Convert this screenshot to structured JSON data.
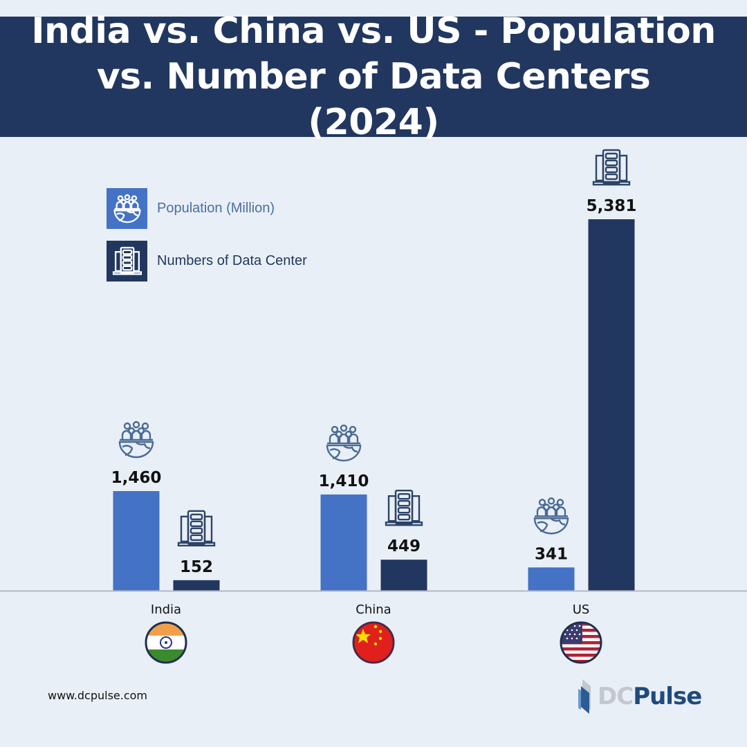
{
  "header": {
    "title": "India vs. China vs. US - Population vs. Number of Data Centers (2024)"
  },
  "legend": [
    {
      "label": "Population (Million)",
      "icon": "population-globe-icon",
      "color": "#4472c4",
      "text_color": "#4a6fa5"
    },
    {
      "label": "Numbers of Data Center",
      "icon": "server-rack-icon",
      "color": "#21375f",
      "text_color": "#21375f"
    }
  ],
  "chart_data": {
    "type": "bar",
    "title": "India vs. China vs. US - Population vs. Number of Data Centers (2024)",
    "categories": [
      "India",
      "China",
      "US"
    ],
    "series": [
      {
        "name": "Population (Million)",
        "values": [
          1460,
          1410,
          341
        ],
        "labels": [
          "1,460",
          "1,410",
          "341"
        ],
        "color": "#4472c4"
      },
      {
        "name": "Numbers of Data Center",
        "values": [
          152,
          449,
          5381
        ],
        "labels": [
          "152",
          "449",
          "5,381"
        ],
        "color": "#21375f"
      }
    ],
    "xlabel": "",
    "ylabel": "",
    "ylim": [
      0,
      5381
    ],
    "grid": false,
    "legend_position": "top-left"
  },
  "flags": [
    {
      "country": "India",
      "icon": "india-flag-icon"
    },
    {
      "country": "China",
      "icon": "china-flag-icon"
    },
    {
      "country": "US",
      "icon": "us-flag-icon"
    }
  ],
  "footer": {
    "url": "www.dcpulse.com",
    "logo_dc": "DC",
    "logo_pulse": "Pulse"
  },
  "colors": {
    "background": "#e9eff7",
    "header": "#21375f",
    "icon_outline_pop": "#4a6a96",
    "icon_outline_dc": "#2d4468",
    "baseline": "#b3b9c4"
  }
}
